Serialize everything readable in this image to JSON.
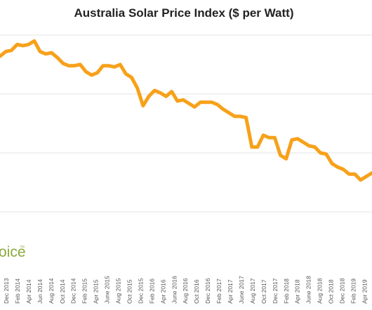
{
  "chart_data": {
    "type": "line",
    "title": "Australia Solar Price Index ($ per Watt)",
    "xlabel": "",
    "ylabel": "",
    "x_tick_labels": [
      "Dec 2013",
      "Feb 2014",
      "Apr 2014",
      "Jun 2014",
      "Aug 2014",
      "Oct 2014",
      "Dec 2014",
      "Feb 2015",
      "Apr 2015",
      "June 2015",
      "Aug 2015",
      "Oct 2015",
      "Dec 2015",
      "Feb 2016",
      "Apr 2016",
      "June 2016",
      "Aug 2016",
      "Oct 2016",
      "Dec 2016",
      "Feb 2017",
      "Apr 2017",
      "June 2017",
      "Aug 2017",
      "Oct 2017",
      "Dec 2017",
      "Feb 2018",
      "Apr 2018",
      "June 2018",
      "Aug 2018",
      "Oct 2018",
      "Dec 2018",
      "Feb 2019",
      "Apr 2019"
    ],
    "y_gridlines": 4,
    "grid": true,
    "series": [
      {
        "color": "#f7a11a",
        "values": [
          1.82,
          1.86,
          1.87,
          1.92,
          1.91,
          1.92,
          1.95,
          1.86,
          1.84,
          1.85,
          1.81,
          1.76,
          1.74,
          1.74,
          1.75,
          1.69,
          1.66,
          1.68,
          1.74,
          1.74,
          1.73,
          1.75,
          1.67,
          1.64,
          1.55,
          1.4,
          1.48,
          1.53,
          1.51,
          1.48,
          1.52,
          1.44,
          1.45,
          1.42,
          1.39,
          1.43,
          1.43,
          1.43,
          1.41,
          1.37,
          1.34,
          1.31,
          1.31,
          1.3,
          1.05,
          1.05,
          1.15,
          1.13,
          1.13,
          0.98,
          0.95,
          1.11,
          1.12,
          1.09,
          1.06,
          1.05,
          1.0,
          0.99,
          0.91,
          0.88,
          0.86,
          0.82,
          0.82,
          0.77,
          0.8,
          0.83
        ]
      }
    ]
  },
  "watermark": {
    "text": "oice",
    "tm": "™",
    "color": "#8aaa3a"
  }
}
